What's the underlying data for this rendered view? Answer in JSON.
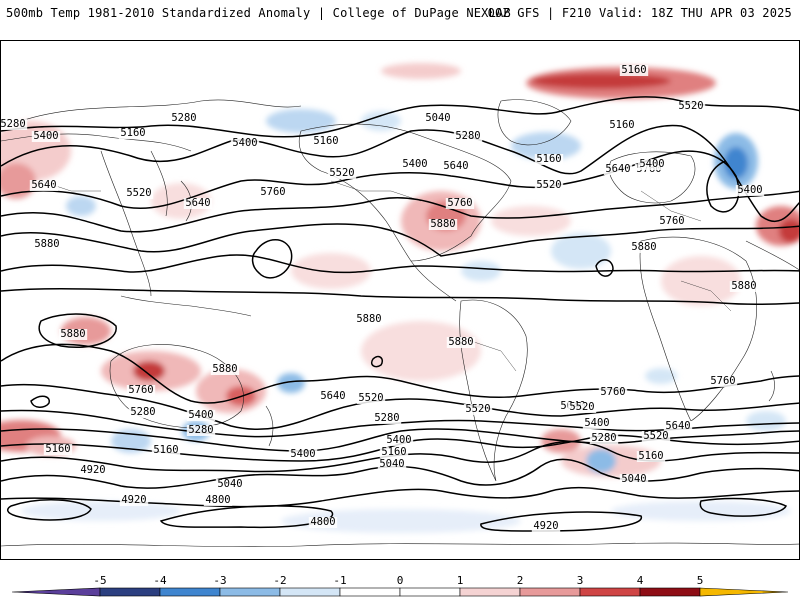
{
  "header": {
    "left_title": "500mb Temp 1981-2010 Standardized Anomaly | College of DuPage NEXLAB",
    "right_title": "00Z GFS | F210 Valid: 18Z THU APR 03 2025"
  },
  "colorbar": {
    "ticks": [
      "-5",
      "-4",
      "-3",
      "-2",
      "-1",
      "0",
      "1",
      "2",
      "3",
      "4",
      "5"
    ],
    "colors": [
      "#5b3f9b",
      "#2b3f80",
      "#3f85cf",
      "#8cbbe6",
      "#d4e6f6",
      "#ffffff",
      "#ffffff",
      "#f5d3d3",
      "#e79a9a",
      "#cf4545",
      "#8e0d15",
      "#f5b800"
    ]
  },
  "contour_labels": [
    "5400",
    "5160",
    "5280",
    "5400",
    "5160",
    "5040",
    "5280",
    "5160",
    "5160",
    "5520",
    "5160",
    "5280",
    "5400",
    "5640",
    "5760",
    "5520",
    "5520",
    "5640",
    "5760",
    "5520",
    "5640",
    "5880",
    "5760",
    "5880",
    "5640",
    "5400",
    "5400",
    "5760",
    "5880",
    "5880",
    "5880",
    "5880",
    "5880",
    "5880",
    "5760",
    "5760",
    "5640",
    "5520",
    "5280",
    "5400",
    "5400",
    "5280",
    "5160",
    "4920",
    "5040",
    "5160",
    "4920",
    "4800",
    "4800",
    "5040",
    "5160",
    "5280",
    "5400",
    "5520",
    "5640",
    "5760",
    "5520",
    "5640",
    "5520",
    "5400",
    "5280",
    "5160",
    "5040",
    "4920",
    "4800"
  ]
}
